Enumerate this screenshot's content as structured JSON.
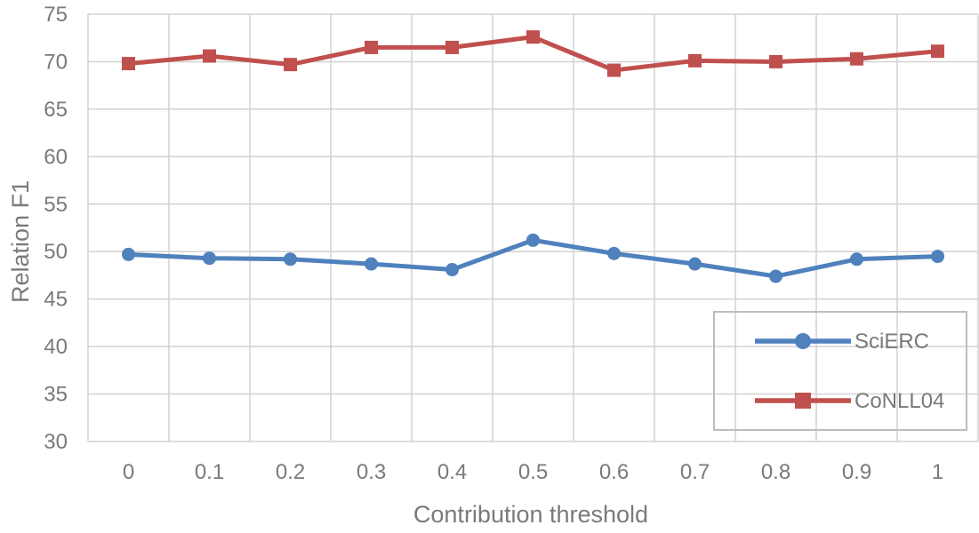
{
  "chart_data": {
    "type": "line",
    "title": "",
    "xlabel": "Contribution threshold",
    "ylabel": "Relation F1",
    "categories": [
      "0",
      "0.1",
      "0.2",
      "0.3",
      "0.4",
      "0.5",
      "0.6",
      "0.7",
      "0.8",
      "0.9",
      "1"
    ],
    "y_ticks": [
      "75",
      "70",
      "65",
      "60",
      "55",
      "50",
      "45",
      "40",
      "35",
      "30"
    ],
    "ylim": [
      30,
      75
    ],
    "grid": true,
    "legend_position": "lower-right",
    "series": [
      {
        "name": "SciERC",
        "marker": "circle",
        "color": "#4F81BD",
        "values": [
          49.7,
          49.3,
          49.2,
          48.7,
          48.1,
          51.2,
          49.8,
          48.7,
          47.4,
          49.2,
          49.5
        ]
      },
      {
        "name": "CoNLL04",
        "marker": "square",
        "color": "#C0504D",
        "values": [
          69.8,
          70.6,
          69.7,
          71.5,
          71.5,
          72.6,
          69.1,
          70.1,
          70.0,
          70.3,
          71.1
        ]
      }
    ]
  },
  "styles": {
    "gridline_color": "#D2D2D2",
    "axis_text_color": "#7A7A7A",
    "legend_border_color": "#BDBDBD",
    "background_color": "#FFFFFF"
  }
}
